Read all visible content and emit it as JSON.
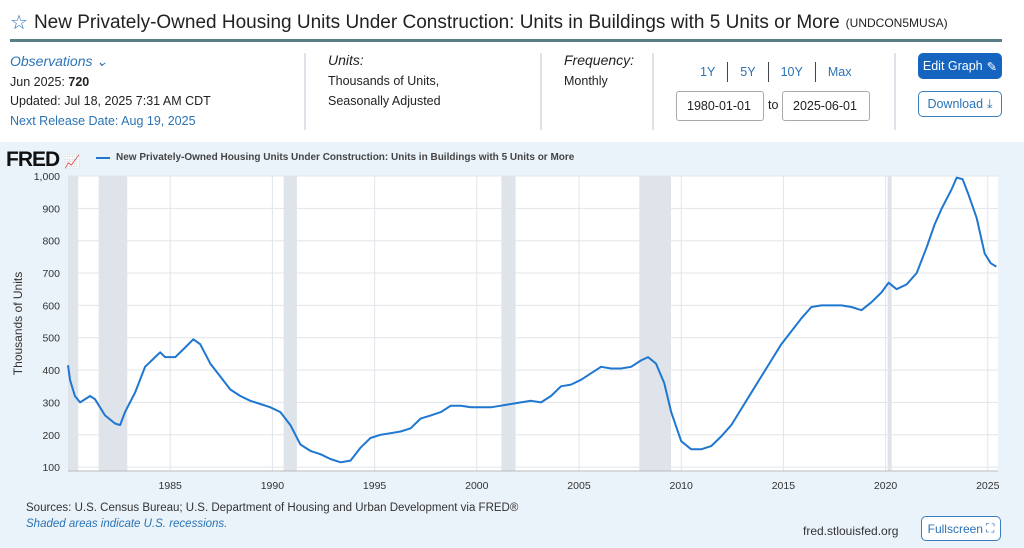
{
  "header": {
    "title": "New Privately-Owned Housing Units Under Construction: Units in Buildings with 5 Units or More",
    "series_id": "(UNDCON5MUSA)"
  },
  "observations": {
    "label": "Observations",
    "latest": "Jun 2025:",
    "latest_value": "720",
    "updated": "Updated: Jul 18, 2025 7:31 AM CDT",
    "next_release": "Next Release Date: Aug 19, 2025"
  },
  "units": {
    "label": "Units:",
    "line1": "Thousands of Units,",
    "line2": "Seasonally Adjusted"
  },
  "frequency": {
    "label": "Frequency:",
    "value": "Monthly"
  },
  "ranges": [
    "1Y",
    "5Y",
    "10Y",
    "Max"
  ],
  "dates": {
    "start": "1980-01-01",
    "to": "to",
    "end": "2025-06-01"
  },
  "buttons": {
    "edit": "Edit Graph",
    "download": "Download",
    "fullscreen": "Fullscreen"
  },
  "chart_header": {
    "logo": "FRED",
    "legend": "New Privately-Owned Housing Units Under Construction: Units in Buildings with 5 Units or More"
  },
  "footer": {
    "sources": "Sources: U.S. Census Bureau; U.S. Department of Housing and Urban Development via FRED®",
    "shaded": "Shaded areas indicate U.S. recessions.",
    "site": "fred.stlouisfed.org"
  },
  "chart_data": {
    "type": "line",
    "ylabel": "Thousands of Units",
    "xlim": [
      1980,
      2025.5
    ],
    "ylim": [
      88,
      1000
    ],
    "yticks": [
      100,
      200,
      300,
      400,
      500,
      600,
      700,
      800,
      900,
      1000
    ],
    "ytick_labels": [
      "100",
      "200",
      "300",
      "400",
      "500",
      "600",
      "700",
      "800",
      "900",
      "1,000"
    ],
    "xticks": [
      1985,
      1990,
      1995,
      2000,
      2005,
      2010,
      2015,
      2020,
      2025
    ],
    "recessions": [
      [
        1980.0,
        1980.5
      ],
      [
        1981.5,
        1982.9
      ],
      [
        1990.55,
        1991.2
      ],
      [
        2001.2,
        2001.9
      ],
      [
        2007.95,
        2009.5
      ],
      [
        2020.1,
        2020.3
      ]
    ],
    "color": "#1f77d0",
    "points": [
      [
        1980.0,
        415
      ],
      [
        1980.1,
        370
      ],
      [
        1980.34,
        320
      ],
      [
        1980.59,
        300
      ],
      [
        1981.08,
        320
      ],
      [
        1981.32,
        310
      ],
      [
        1981.81,
        260
      ],
      [
        1982.3,
        235
      ],
      [
        1982.55,
        230
      ],
      [
        1982.79,
        270
      ],
      [
        1983.28,
        330
      ],
      [
        1983.77,
        410
      ],
      [
        1984.26,
        440
      ],
      [
        1984.51,
        455
      ],
      [
        1984.75,
        440
      ],
      [
        1985.25,
        440
      ],
      [
        1985.74,
        470
      ],
      [
        1986.13,
        495
      ],
      [
        1986.47,
        480
      ],
      [
        1986.96,
        420
      ],
      [
        1987.45,
        380
      ],
      [
        1987.94,
        340
      ],
      [
        1988.43,
        320
      ],
      [
        1988.92,
        305
      ],
      [
        1989.41,
        295
      ],
      [
        1989.9,
        285
      ],
      [
        1990.39,
        270
      ],
      [
        1990.88,
        230
      ],
      [
        1991.37,
        170
      ],
      [
        1991.86,
        150
      ],
      [
        1992.35,
        140
      ],
      [
        1992.84,
        125
      ],
      [
        1993.33,
        115
      ],
      [
        1993.82,
        120
      ],
      [
        1994.31,
        160
      ],
      [
        1994.8,
        190
      ],
      [
        1995.29,
        200
      ],
      [
        1995.78,
        205
      ],
      [
        1996.27,
        210
      ],
      [
        1996.76,
        220
      ],
      [
        1997.25,
        250
      ],
      [
        1997.75,
        260
      ],
      [
        1998.24,
        270
      ],
      [
        1998.73,
        290
      ],
      [
        1999.22,
        290
      ],
      [
        1999.71,
        285
      ],
      [
        2000.2,
        285
      ],
      [
        2000.69,
        285
      ],
      [
        2001.18,
        290
      ],
      [
        2001.67,
        295
      ],
      [
        2002.16,
        300
      ],
      [
        2002.65,
        305
      ],
      [
        2003.14,
        300
      ],
      [
        2003.63,
        320
      ],
      [
        2004.12,
        350
      ],
      [
        2004.61,
        355
      ],
      [
        2005.1,
        370
      ],
      [
        2005.59,
        390
      ],
      [
        2006.08,
        410
      ],
      [
        2006.57,
        405
      ],
      [
        2007.06,
        405
      ],
      [
        2007.55,
        410
      ],
      [
        2008.04,
        430
      ],
      [
        2008.38,
        440
      ],
      [
        2008.77,
        420
      ],
      [
        2009.17,
        360
      ],
      [
        2009.51,
        270
      ],
      [
        2010.0,
        180
      ],
      [
        2010.49,
        155
      ],
      [
        2010.98,
        155
      ],
      [
        2011.47,
        165
      ],
      [
        2011.96,
        195
      ],
      [
        2012.45,
        230
      ],
      [
        2012.94,
        280
      ],
      [
        2013.43,
        330
      ],
      [
        2013.92,
        380
      ],
      [
        2014.41,
        430
      ],
      [
        2014.9,
        480
      ],
      [
        2015.39,
        520
      ],
      [
        2015.88,
        560
      ],
      [
        2016.37,
        595
      ],
      [
        2016.86,
        600
      ],
      [
        2017.35,
        600
      ],
      [
        2017.84,
        600
      ],
      [
        2018.33,
        595
      ],
      [
        2018.82,
        585
      ],
      [
        2019.31,
        610
      ],
      [
        2019.8,
        640
      ],
      [
        2020.15,
        670
      ],
      [
        2020.54,
        650
      ],
      [
        2021.03,
        665
      ],
      [
        2021.52,
        700
      ],
      [
        2022.01,
        780
      ],
      [
        2022.4,
        850
      ],
      [
        2022.75,
        900
      ],
      [
        2023.24,
        960
      ],
      [
        2023.48,
        995
      ],
      [
        2023.77,
        990
      ],
      [
        2024.07,
        940
      ],
      [
        2024.46,
        870
      ],
      [
        2024.85,
        760
      ],
      [
        2025.15,
        730
      ],
      [
        2025.42,
        720
      ]
    ]
  }
}
